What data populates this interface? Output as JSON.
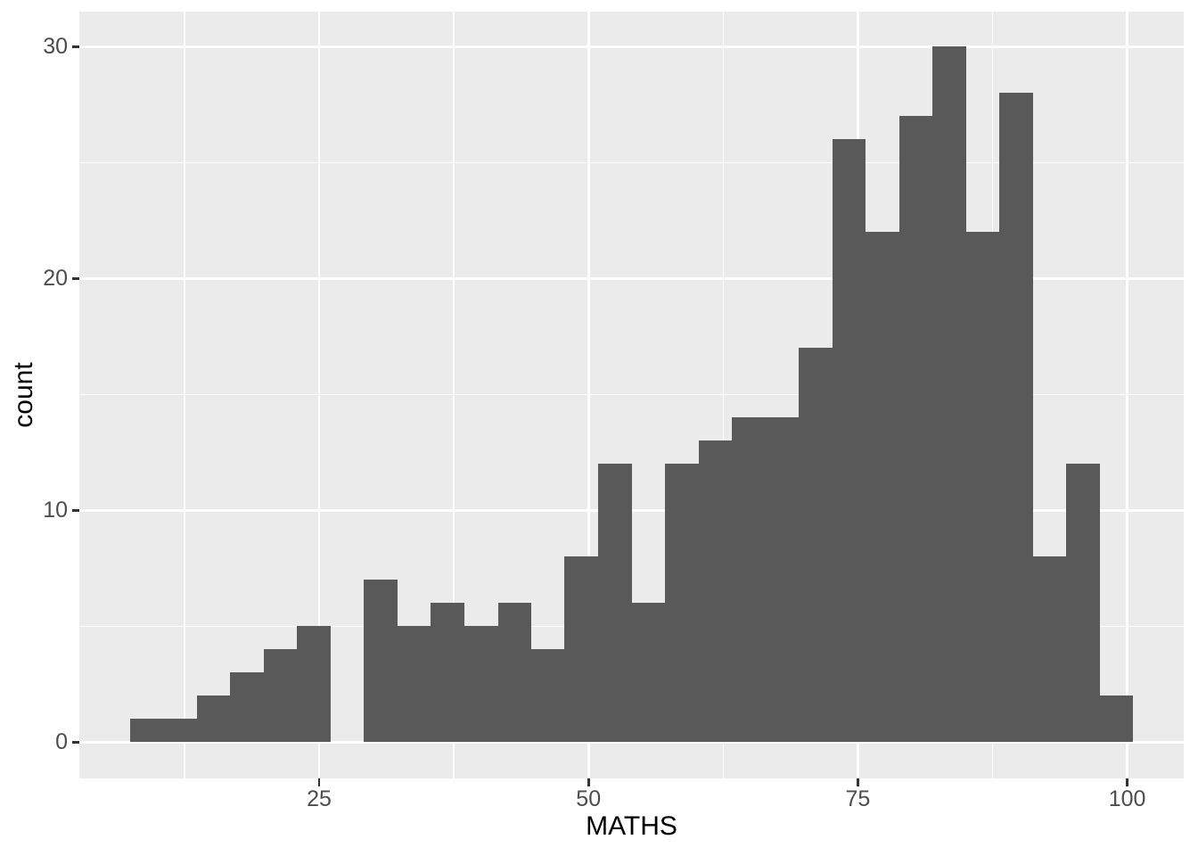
{
  "figure": {
    "background": "#FFFFFF",
    "panel_background": "#EBEBEB",
    "grid_color": "#FFFFFF",
    "bar_fill": "#595959",
    "tick_mark_color": "#333333",
    "tick_label_color": "#4D4D4D",
    "axis_title_color": "#000000"
  },
  "chart_data": {
    "type": "bar",
    "subtype": "histogram",
    "title": "",
    "xlabel": "MATHS",
    "ylabel": "count",
    "bins": 30,
    "bin_width": 3.1,
    "bin_edges": [
      7.45,
      10.55,
      13.66,
      16.76,
      19.86,
      22.97,
      26.07,
      29.17,
      32.28,
      35.38,
      38.48,
      41.59,
      44.69,
      47.79,
      50.9,
      54.0,
      57.1,
      60.21,
      63.31,
      66.41,
      69.52,
      72.62,
      75.72,
      78.83,
      81.93,
      85.03,
      88.14,
      91.24,
      94.34,
      97.45,
      100.55
    ],
    "values": [
      1,
      1,
      2,
      3,
      4,
      5,
      0,
      7,
      5,
      6,
      5,
      6,
      4,
      8,
      12,
      6,
      12,
      13,
      14,
      14,
      17,
      26,
      22,
      27,
      30,
      22,
      28,
      8,
      12,
      2
    ],
    "total_count": 322,
    "x_ticks": [
      25,
      50,
      75,
      100
    ],
    "x_tick_labels": [
      "25",
      "50",
      "75",
      "100"
    ],
    "x_minor_ticks": [
      12.5,
      37.5,
      62.5,
      87.5
    ],
    "y_ticks": [
      0,
      10,
      20,
      30
    ],
    "y_tick_labels": [
      "0",
      "10",
      "20",
      "30"
    ],
    "y_minor_ticks": [
      5,
      15,
      25
    ],
    "x_domain": [
      2.746,
      105.244
    ],
    "y_domain": [
      -1.558,
      31.519
    ],
    "ylim_data": [
      0,
      30
    ],
    "grid": "on",
    "legend": "none"
  }
}
